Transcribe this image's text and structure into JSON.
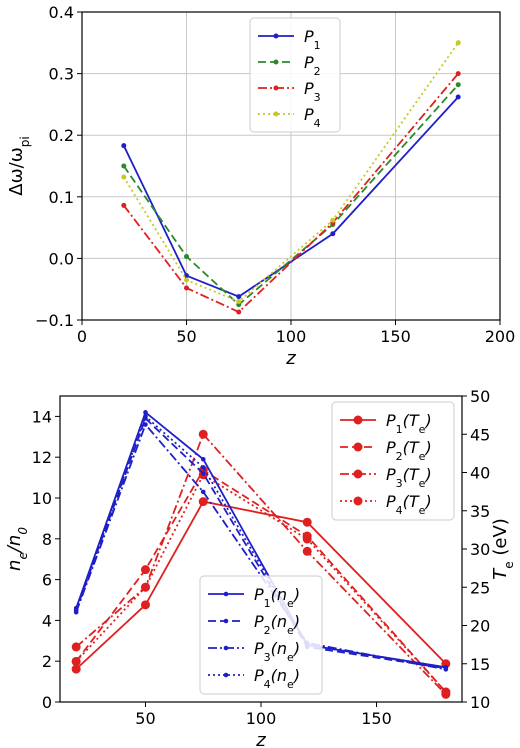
{
  "chart_data": [
    {
      "type": "line",
      "xlabel": "z",
      "ylabel": "Δω/ω_pi",
      "xlim": [
        0,
        200
      ],
      "ylim": [
        -0.1,
        0.4
      ],
      "xticks": [
        "0",
        "50",
        "100",
        "150",
        "200"
      ],
      "yticks": [
        "−0.1",
        "0.0",
        "0.1",
        "0.2",
        "0.3",
        "0.4"
      ],
      "grid": true,
      "legend_position": "top-center",
      "x": [
        20,
        50,
        75,
        120,
        180
      ],
      "series": [
        {
          "name": "P1",
          "color": "#1f1fc8",
          "dash": "solid",
          "values": [
            0.183,
            -0.028,
            -0.062,
            0.04,
            0.262
          ]
        },
        {
          "name": "P2",
          "color": "#2a8a2a",
          "dash": "dashed",
          "values": [
            0.15,
            0.003,
            -0.075,
            0.055,
            0.282
          ]
        },
        {
          "name": "P3",
          "color": "#e02020",
          "dash": "dashdot",
          "values": [
            0.086,
            -0.048,
            -0.087,
            0.058,
            0.3
          ]
        },
        {
          "name": "P4",
          "color": "#c8c820",
          "dash": "dotted",
          "values": [
            0.132,
            -0.035,
            -0.07,
            0.062,
            0.35
          ]
        }
      ]
    },
    {
      "type": "line",
      "xlabel": "z",
      "ylabel_left": "n_e/n_0",
      "ylabel_right": "T_e (eV)",
      "xlim": [
        13,
        187
      ],
      "ylim_left": [
        0,
        15
      ],
      "ylim_right": [
        10,
        50
      ],
      "xticks": [
        "50",
        "100",
        "150"
      ],
      "yticks_left": [
        "0",
        "2",
        "4",
        "6",
        "8",
        "10",
        "12",
        "14"
      ],
      "yticks_right": [
        "10",
        "15",
        "20",
        "25",
        "30",
        "35",
        "40",
        "45",
        "50"
      ],
      "grid": false,
      "x": [
        20,
        50,
        75,
        120,
        180
      ],
      "legend_right_position": "top-right",
      "legend_left_position": "lower-center",
      "series_left": [
        {
          "name": "P1(ne)",
          "color": "#1f1fc8",
          "dash": "solid",
          "values": [
            4.6,
            14.2,
            11.9,
            2.8,
            1.7
          ]
        },
        {
          "name": "P2(ne)",
          "color": "#1f1fc8",
          "dash": "dashed",
          "values": [
            4.5,
            13.9,
            11.2,
            2.7,
            1.65
          ]
        },
        {
          "name": "P3(ne)",
          "color": "#1f1fc8",
          "dash": "dashdot",
          "values": [
            4.4,
            13.6,
            10.3,
            2.9,
            1.6
          ]
        },
        {
          "name": "P4(ne)",
          "color": "#1f1fc8",
          "dash": "dotted",
          "values": [
            4.5,
            14.0,
            11.5,
            2.8,
            1.7
          ]
        }
      ],
      "series_right": [
        {
          "name": "P1(Te)",
          "color": "#e02020",
          "dash": "solid",
          "values": [
            14.3,
            22.7,
            36.2,
            33.5,
            15.0
          ]
        },
        {
          "name": "P2(Te)",
          "color": "#e02020",
          "dash": "dashed",
          "values": [
            15.3,
            27.3,
            40.3,
            31.7,
            11.3
          ]
        },
        {
          "name": "P3(Te)",
          "color": "#e02020",
          "dash": "dashdot",
          "values": [
            17.2,
            25.0,
            45.0,
            29.7,
            11.0
          ]
        },
        {
          "name": "P4(Te)",
          "color": "#e02020",
          "dash": "dotted",
          "values": [
            15.3,
            25.0,
            39.7,
            31.3,
            11.3
          ]
        }
      ]
    }
  ]
}
